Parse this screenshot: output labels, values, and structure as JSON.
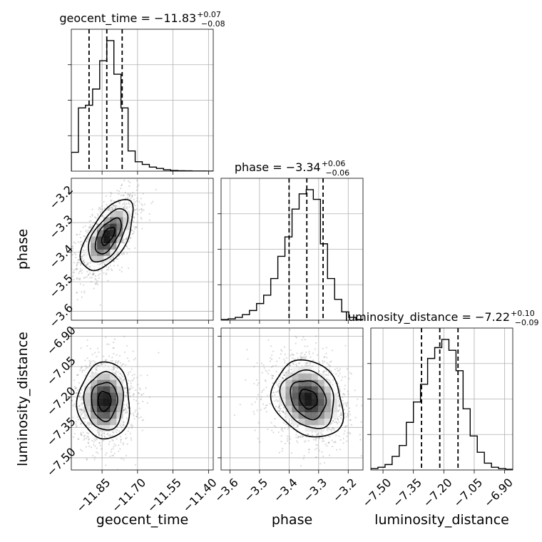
{
  "chart_data": {
    "type": "corner",
    "parameters": [
      {
        "name": "geocent_time",
        "axis_range": [
          -11.98,
          -11.38
        ],
        "ticks": [
          -11.85,
          -11.7,
          -11.55,
          -11.4
        ],
        "tick_labels": [
          "−11.85",
          "−11.70",
          "−11.55",
          "−11.40"
        ]
      },
      {
        "name": "phase",
        "axis_range": [
          -3.63,
          -3.15
        ],
        "ticks": [
          -3.6,
          -3.5,
          -3.4,
          -3.3,
          -3.2
        ],
        "tick_labels": [
          "−3.6",
          "−3.5",
          "−3.4",
          "−3.3",
          "−3.2"
        ]
      },
      {
        "name": "luminosity_distance",
        "axis_range": [
          -7.56,
          -6.86
        ],
        "ticks": [
          -7.5,
          -7.35,
          -7.2,
          -7.05,
          -6.9
        ],
        "tick_labels": [
          "−7.50",
          "−7.35",
          "−7.20",
          "−7.05",
          "−6.90"
        ]
      }
    ],
    "titles": [
      {
        "label": "geocent_time = −11.83",
        "plus": "+0.07",
        "minus": "−0.08"
      },
      {
        "label": "phase = −3.34",
        "plus": "+0.06",
        "minus": "−0.06"
      },
      {
        "label": "luminosity_distance = −7.22",
        "plus": "+0.10",
        "minus": "−0.09"
      }
    ],
    "quantiles": [
      [
        -11.905,
        -11.83,
        -11.765
      ],
      [
        -3.4,
        -3.34,
        -3.285
      ],
      [
        -7.31,
        -7.22,
        -7.13
      ]
    ],
    "histograms": [
      {
        "bin_edges": [
          -11.98,
          -11.95,
          -11.92,
          -11.89,
          -11.86,
          -11.83,
          -11.8,
          -11.77,
          -11.74,
          -11.71,
          -11.68,
          -11.65,
          -11.62,
          -11.59,
          -11.56,
          -11.53,
          -11.5,
          -11.47,
          -11.44,
          -11.41,
          -11.38
        ],
        "counts": [
          0.14,
          0.47,
          0.49,
          0.61,
          0.82,
          0.97,
          0.72,
          0.47,
          0.15,
          0.07,
          0.05,
          0.03,
          0.02,
          0.01,
          0.005,
          0.003,
          0.002,
          0.001,
          0.001,
          0.0
        ]
      },
      {
        "bin_edges": [
          -3.63,
          -3.606,
          -3.582,
          -3.558,
          -3.534,
          -3.51,
          -3.486,
          -3.462,
          -3.438,
          -3.414,
          -3.39,
          -3.366,
          -3.342,
          -3.318,
          -3.294,
          -3.27,
          -3.246,
          -3.222,
          -3.198,
          -3.174,
          -3.15
        ],
        "counts": [
          0.005,
          0.01,
          0.02,
          0.04,
          0.07,
          0.12,
          0.18,
          0.3,
          0.46,
          0.6,
          0.8,
          0.91,
          0.94,
          0.87,
          0.55,
          0.3,
          0.15,
          0.06,
          0.02,
          0.005
        ]
      },
      {
        "bin_edges": [
          -7.56,
          -7.525,
          -7.49,
          -7.455,
          -7.42,
          -7.385,
          -7.35,
          -7.315,
          -7.28,
          -7.245,
          -7.21,
          -7.175,
          -7.14,
          -7.105,
          -7.07,
          -7.035,
          -7.0,
          -6.965,
          -6.93,
          -6.895,
          -6.86
        ],
        "counts": [
          0.01,
          0.02,
          0.04,
          0.1,
          0.18,
          0.35,
          0.5,
          0.63,
          0.82,
          0.9,
          0.96,
          0.88,
          0.73,
          0.45,
          0.25,
          0.13,
          0.05,
          0.02,
          0.01,
          0.005
        ]
      }
    ],
    "joint_2d": [
      {
        "x_param": "geocent_time",
        "y_param": "phase",
        "mean": [
          -11.825,
          -3.345
        ],
        "sigma": [
          0.055,
          0.06
        ],
        "correlation": 0.6,
        "contour_sigmas": [
          0.5,
          1.0,
          1.5,
          2.0
        ]
      },
      {
        "x_param": "geocent_time",
        "y_param": "luminosity_distance",
        "mean": [
          -11.84,
          -7.22
        ],
        "sigma": [
          0.055,
          0.095
        ],
        "correlation": 0.0,
        "contour_sigmas": [
          0.5,
          1.0,
          1.5,
          2.0
        ]
      },
      {
        "x_param": "phase",
        "y_param": "luminosity_distance",
        "mean": [
          -3.335,
          -7.21
        ],
        "sigma": [
          0.06,
          0.095
        ],
        "correlation": -0.2,
        "contour_sigmas": [
          0.5,
          1.0,
          1.5,
          2.0
        ]
      }
    ],
    "grid": true
  }
}
